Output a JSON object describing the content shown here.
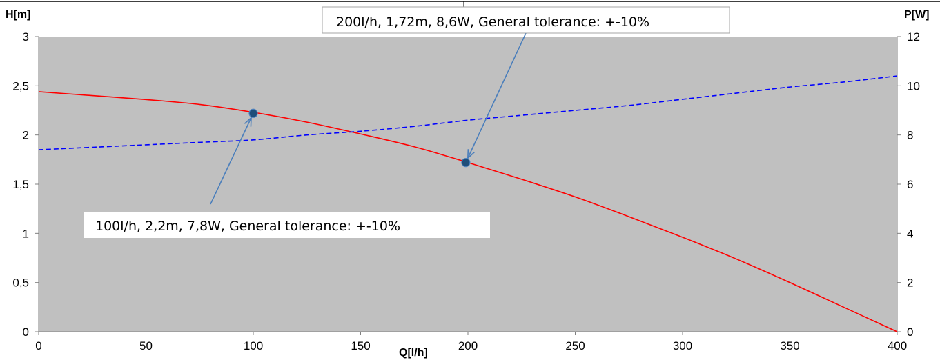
{
  "chart_data": {
    "type": "line",
    "title": "",
    "xlabel": "Q[l/h]",
    "ylabel_left": "H[m]",
    "ylabel_right": "P[W]",
    "xlim": [
      0,
      400
    ],
    "ylim_left": [
      0,
      3
    ],
    "ylim_right": [
      0,
      12
    ],
    "x_ticks": [
      "0",
      "50",
      "100",
      "150",
      "200",
      "250",
      "300",
      "350",
      "400"
    ],
    "y_left_ticks": [
      "0",
      "0,5",
      "1",
      "1,5",
      "2",
      "2,5",
      "3"
    ],
    "y_right_ticks": [
      "0",
      "2",
      "4",
      "6",
      "8",
      "10",
      "12"
    ],
    "grid": false,
    "colors": {
      "plot_bg": "#c0c0c0",
      "head": "#ff0000",
      "power": "#0000ff",
      "marker": "#1f4e79",
      "arrow": "#4a7ebb"
    },
    "series": [
      {
        "axis": "left",
        "style": "solid",
        "x": [
          0,
          25,
          50,
          75,
          100,
          125,
          150,
          175,
          200,
          225,
          250,
          275,
          300,
          325,
          350,
          375,
          400
        ],
        "values": [
          2.44,
          2.4,
          2.36,
          2.31,
          2.23,
          2.13,
          2.01,
          1.88,
          1.72,
          1.55,
          1.37,
          1.17,
          0.96,
          0.74,
          0.5,
          0.25,
          0.0
        ]
      },
      {
        "axis": "right",
        "style": "dashed",
        "x": [
          0,
          25,
          50,
          75,
          100,
          125,
          150,
          175,
          200,
          225,
          250,
          275,
          300,
          325,
          350,
          375,
          400
        ],
        "values": [
          7.4,
          7.5,
          7.6,
          7.7,
          7.8,
          8.0,
          8.15,
          8.35,
          8.6,
          8.8,
          9.0,
          9.2,
          9.45,
          9.7,
          9.95,
          10.15,
          10.4
        ]
      }
    ],
    "points": [
      {
        "x": 100,
        "y": 2.22
      },
      {
        "x": 199,
        "y": 1.72
      }
    ],
    "annotations": [
      {
        "text": "100l/h, 2,2m, 7,8W, General tolerance: +-10%",
        "target": 0
      },
      {
        "text": "200l/h, 1,72m, 8,6W, General tolerance: +-10%",
        "target": 1
      }
    ]
  }
}
